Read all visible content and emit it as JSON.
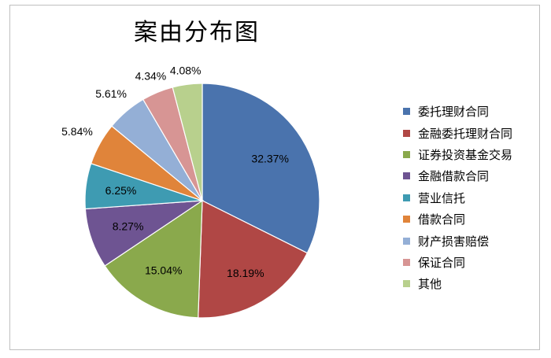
{
  "chart_data": {
    "type": "pie",
    "title": "案由分布图",
    "legend_position": "right",
    "slices": [
      {
        "label": "委托理财合同",
        "value": 32.37,
        "display": "32.37%",
        "color": "#4a73ad"
      },
      {
        "label": "金融委托理财合同",
        "value": 18.19,
        "display": "18.19%",
        "color": "#b04745"
      },
      {
        "label": "证券投资基金交易",
        "value": 15.04,
        "display": "15.04%",
        "color": "#8aa94c"
      },
      {
        "label": "金融借款合同",
        "value": 8.27,
        "display": "8.27%",
        "color": "#6e5492"
      },
      {
        "label": "营业信托",
        "value": 6.25,
        "display": "6.25%",
        "color": "#3e9bb2"
      },
      {
        "label": "借款合同",
        "value": 5.84,
        "display": "5.84%",
        "color": "#e0843a"
      },
      {
        "label": "财产损害赔偿",
        "value": 5.61,
        "display": "5.61%",
        "color": "#94afd6"
      },
      {
        "label": "保证合同",
        "value": 4.34,
        "display": "4.34%",
        "color": "#d79594"
      },
      {
        "label": "其他",
        "value": 4.08,
        "display": "4.08%",
        "color": "#b8d08d"
      }
    ]
  }
}
